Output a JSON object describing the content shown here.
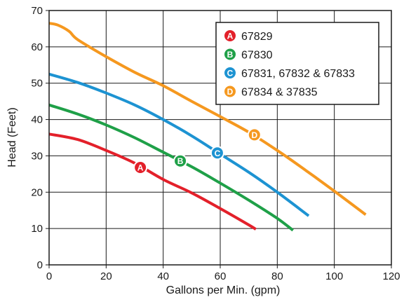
{
  "chart_data": {
    "type": "line",
    "title": "",
    "xlabel": "Gallons per Min. (gpm)",
    "ylabel": "Head (Feet)",
    "xlim": [
      0,
      120
    ],
    "ylim": [
      0,
      70
    ],
    "x_ticks": [
      0,
      20,
      40,
      60,
      80,
      100,
      120
    ],
    "y_ticks": [
      0,
      10,
      20,
      30,
      40,
      50,
      60,
      70
    ],
    "grid": true,
    "legend_position": "top-right",
    "series": [
      {
        "name": "67829",
        "badge": "A",
        "color": "#e3202a",
        "badge_at": [
          32,
          26.8
        ],
        "points": [
          [
            0,
            36
          ],
          [
            10,
            34.5
          ],
          [
            20,
            31.5
          ],
          [
            30,
            28
          ],
          [
            40,
            23.5
          ],
          [
            50,
            19.8
          ],
          [
            60,
            15.5
          ],
          [
            70,
            11
          ],
          [
            72.5,
            9.8
          ]
        ]
      },
      {
        "name": "67830",
        "badge": "B",
        "color": "#1fa048",
        "badge_at": [
          46,
          28.6
        ],
        "points": [
          [
            0,
            44
          ],
          [
            10,
            41.5
          ],
          [
            20,
            38.5
          ],
          [
            30,
            35
          ],
          [
            40,
            31
          ],
          [
            50,
            27
          ],
          [
            60,
            22.5
          ],
          [
            70,
            17.8
          ],
          [
            80,
            12.8
          ],
          [
            85.5,
            9.5
          ]
        ]
      },
      {
        "name": "67831, 67832 & 67833",
        "badge": "C",
        "color": "#1d93d2",
        "badge_at": [
          59,
          30.8
        ],
        "points": [
          [
            0,
            52.5
          ],
          [
            10,
            50.2
          ],
          [
            20,
            47.3
          ],
          [
            30,
            44
          ],
          [
            40,
            40
          ],
          [
            50,
            35.5
          ],
          [
            60,
            30.5
          ],
          [
            70,
            25.5
          ],
          [
            80,
            20
          ],
          [
            91,
            13.5
          ]
        ]
      },
      {
        "name": "67834 & 37835",
        "badge": "D",
        "color": "#f5981f",
        "badge_at": [
          72,
          35.8
        ],
        "points": [
          [
            0,
            66.5
          ],
          [
            3,
            66
          ],
          [
            7,
            64.3
          ],
          [
            10,
            62
          ],
          [
            20,
            57.3
          ],
          [
            30,
            53
          ],
          [
            40,
            49.3
          ],
          [
            50,
            45
          ],
          [
            60,
            40.8
          ],
          [
            70,
            36.5
          ],
          [
            80,
            31.5
          ],
          [
            90,
            26
          ],
          [
            100,
            20.3
          ],
          [
            111,
            13.8
          ]
        ]
      }
    ]
  }
}
